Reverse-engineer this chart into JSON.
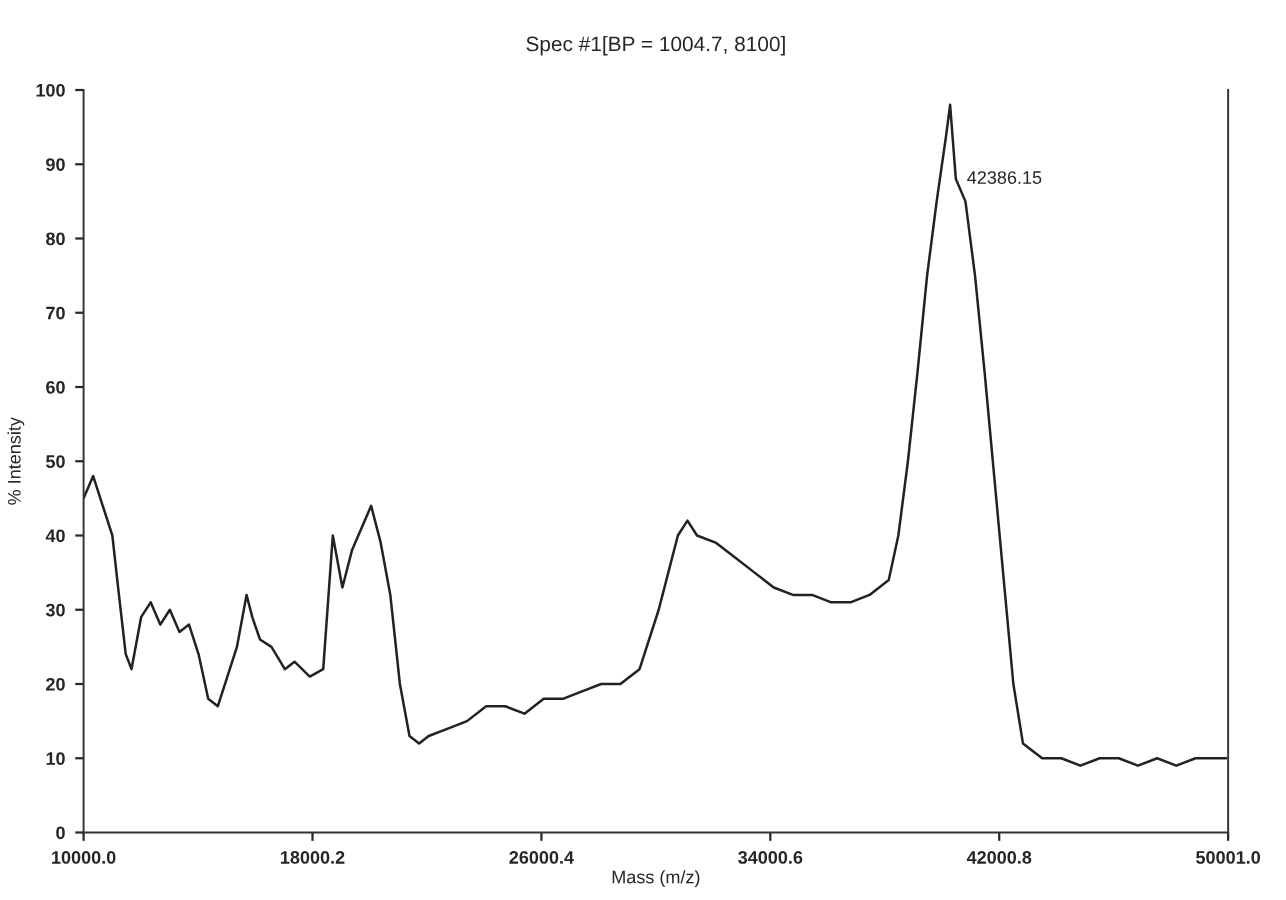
{
  "chart_data": {
    "type": "line",
    "title": "Spec #1[BP = 1004.7, 8100]",
    "xlabel": "Mass (m/z)",
    "ylabel": "% Intensity",
    "x": [
      10000,
      10335,
      10670,
      11005,
      11206,
      11474,
      11675,
      12010,
      12345,
      12680,
      13015,
      13350,
      13685,
      14020,
      14355,
      14690,
      15025,
      15360,
      15695,
      15896,
      16164,
      16566,
      17035,
      17370,
      17906,
      18375,
      18710,
      19045,
      19380,
      19715,
      20050,
      20385,
      20720,
      21055,
      21390,
      21725,
      22060,
      22730,
      23400,
      24070,
      24740,
      25410,
      26080,
      26750,
      27420,
      28090,
      28760,
      29430,
      30100,
      30435,
      30770,
      31105,
      31440,
      32110,
      32780,
      33450,
      34120,
      34790,
      35460,
      36130,
      36800,
      37470,
      38140,
      38475,
      38810,
      39145,
      39480,
      39815,
      40150,
      40284,
      40485,
      40820,
      41155,
      41490,
      41825,
      42160,
      42495,
      42830,
      43500,
      44170,
      44840,
      45510,
      46180,
      46850,
      47520,
      48190,
      48860,
      49530,
      49932
    ],
    "series": [
      {
        "color": "#222222",
        "values": [
          45,
          48,
          44,
          40,
          33,
          24,
          22,
          29,
          31,
          28,
          30,
          27,
          28,
          24,
          18,
          17,
          21,
          25,
          32,
          29,
          26,
          25,
          22,
          23,
          21,
          22,
          40,
          33,
          38,
          41,
          44,
          39,
          32,
          20,
          13,
          12,
          13,
          14,
          15,
          17,
          17,
          16,
          18,
          18,
          19,
          20,
          20,
          22,
          30,
          35,
          40,
          42,
          40,
          39,
          37,
          35,
          33,
          32,
          32,
          31,
          31,
          32,
          34,
          40,
          50,
          62,
          75,
          85,
          94,
          98,
          88,
          85,
          75,
          62,
          48,
          34,
          20,
          12,
          10,
          10,
          9,
          10,
          10,
          9,
          10,
          9,
          10,
          10,
          10
        ]
      }
    ],
    "annotations": [
      {
        "text": "42386.15",
        "x": 40284,
        "y": 88
      }
    ],
    "xlim": [
      10000,
      50001
    ],
    "ylim": [
      0,
      100
    ],
    "xticks": [
      {
        "value": 10000,
        "label": "10000.0"
      },
      {
        "value": 18000.2,
        "label": "18000.2"
      },
      {
        "value": 26000.4,
        "label": "26000.4"
      },
      {
        "value": 34000.6,
        "label": "34000.6"
      },
      {
        "value": 42000.8,
        "label": "42000.8"
      },
      {
        "value": 50001,
        "label": "50001.0"
      }
    ],
    "yticks": [
      0,
      10,
      20,
      30,
      40,
      50,
      60,
      70,
      80,
      90,
      100
    ],
    "grid": false,
    "legend": false,
    "marker": "none",
    "line_style": "solid"
  }
}
